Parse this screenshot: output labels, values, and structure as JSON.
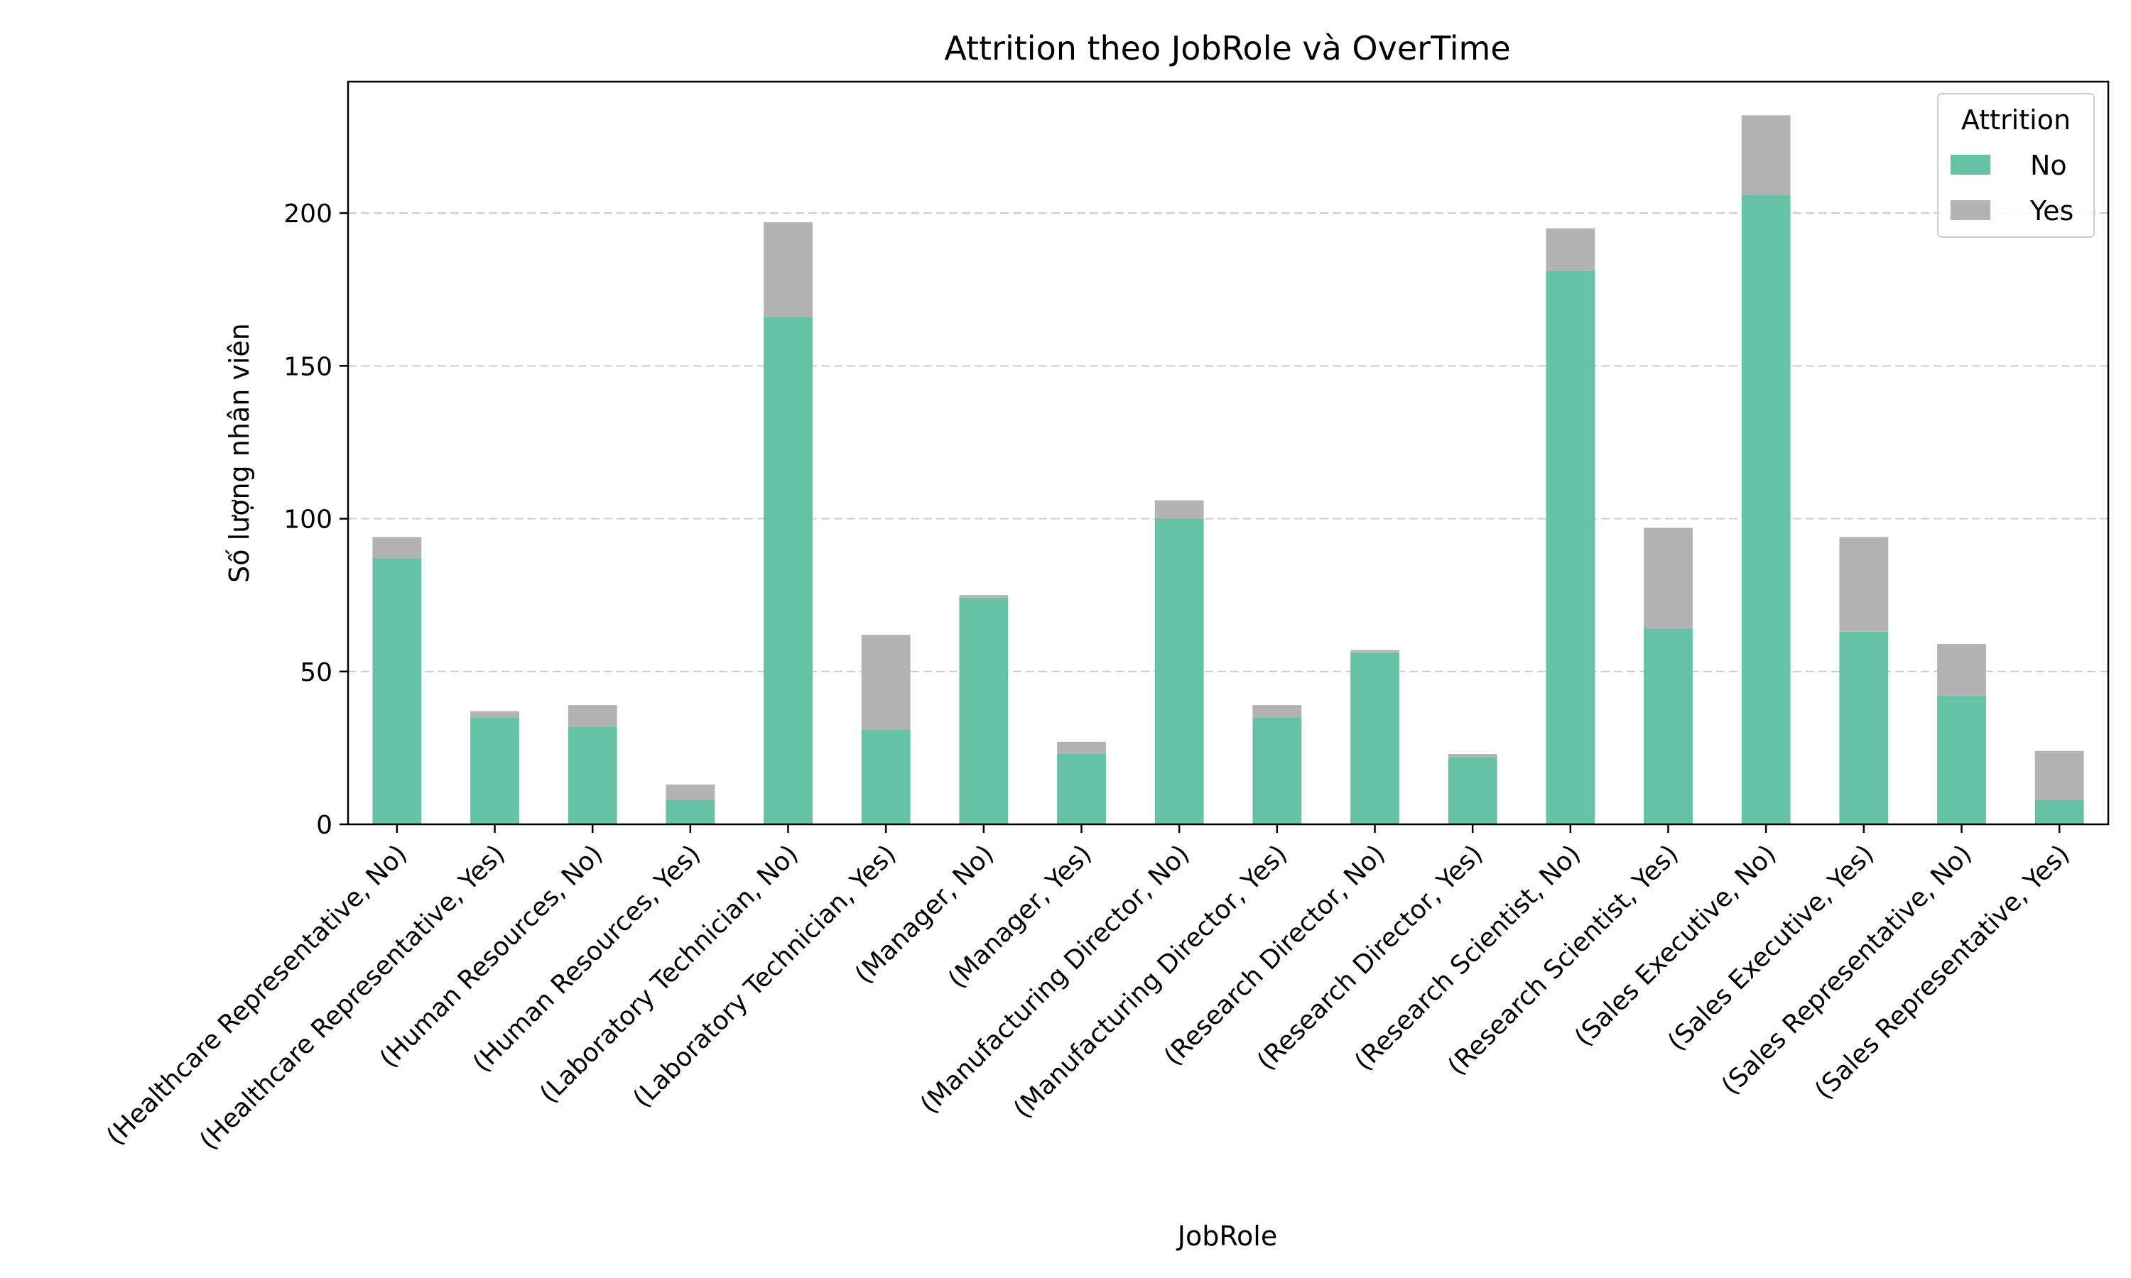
{
  "chart_data": {
    "type": "bar",
    "stacked": true,
    "title": "Attrition theo JobRole và OverTime",
    "xlabel": "JobRole",
    "ylabel": "Số lượng nhân viên",
    "ylim": [
      0,
      243
    ],
    "yticks": [
      0,
      50,
      100,
      150,
      200
    ],
    "grid": "y-dashed",
    "legend": {
      "title": "Attrition",
      "placement": "top-right"
    },
    "categories": [
      "(Healthcare Representative, No)",
      "(Healthcare Representative, Yes)",
      "(Human Resources, No)",
      "(Human Resources, Yes)",
      "(Laboratory Technician, No)",
      "(Laboratory Technician, Yes)",
      "(Manager, No)",
      "(Manager, Yes)",
      "(Manufacturing Director, No)",
      "(Manufacturing Director, Yes)",
      "(Research Director, No)",
      "(Research Director, Yes)",
      "(Research Scientist, No)",
      "(Research Scientist, Yes)",
      "(Sales Executive, No)",
      "(Sales Executive, Yes)",
      "(Sales Representative, No)",
      "(Sales Representative, Yes)"
    ],
    "series": [
      {
        "name": "No",
        "color": "#66c2a5",
        "values": [
          87,
          35,
          32,
          8,
          166,
          31,
          74,
          23,
          100,
          35,
          56,
          22,
          181,
          64,
          206,
          63,
          42,
          8
        ]
      },
      {
        "name": "Yes",
        "color": "#b3b3b3",
        "values": [
          7,
          2,
          7,
          5,
          31,
          31,
          1,
          4,
          6,
          4,
          1,
          1,
          14,
          33,
          26,
          31,
          17,
          16
        ]
      }
    ]
  }
}
